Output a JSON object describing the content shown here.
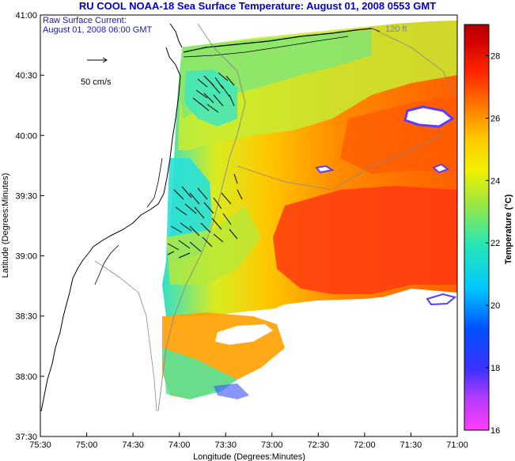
{
  "title": "RU COOL  NOAA-18  Sea Surface Temperature:  August 01, 2008 0553 GMT",
  "current_note": {
    "line1": "Raw Surface Current:",
    "line2": "August 01, 2008 06:00 GMT"
  },
  "scale_label": "50 cm/s",
  "isobath_label": "120 ft",
  "axes": {
    "xlabel": "Longitude (Degrees:Minutes)",
    "ylabel": "Latitude (Degrees:Minutes)",
    "x_ticks": [
      "75:30",
      "75:00",
      "74:30",
      "74:00",
      "73:30",
      "73:00",
      "72:30",
      "72:00",
      "71:30",
      "71:00"
    ],
    "y_ticks": [
      "41:00",
      "40:30",
      "40:00",
      "39:30",
      "39:00",
      "38:30",
      "38:00",
      "37:30"
    ]
  },
  "colorbar": {
    "label": "Temperature (°C)",
    "ticks": [
      "28",
      "26",
      "24",
      "22",
      "20",
      "18",
      "16"
    ],
    "range": [
      16,
      29
    ]
  },
  "colors": {
    "title": "#0000cc",
    "note": "#1a1aa8"
  }
}
